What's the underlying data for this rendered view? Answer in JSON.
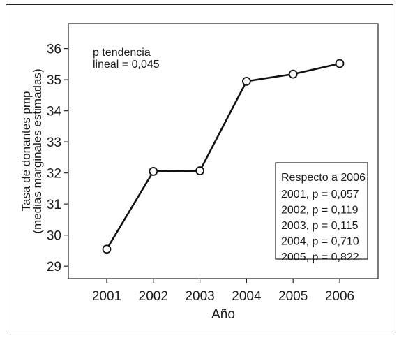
{
  "chart_data": {
    "type": "line",
    "x": [
      2001,
      2002,
      2003,
      2004,
      2005,
      2006
    ],
    "y": [
      29.55,
      32.05,
      32.07,
      34.95,
      35.18,
      35.52
    ],
    "xlabel": "Año",
    "ylabel_lines": [
      "Tasa de donantes pmp",
      "(medias marginales estimadas)"
    ],
    "yticks": [
      29,
      30,
      31,
      32,
      33,
      34,
      35,
      36
    ],
    "xticks": [
      "2001",
      "2002",
      "2003",
      "2004",
      "2005",
      "2006"
    ],
    "ylim": [
      28.6,
      36.8
    ],
    "grid": false,
    "legend": "none",
    "line_color": "#111111",
    "marker": "open-circle",
    "annotation": [
      "p tendencia",
      "lineal = 0,045"
    ],
    "pvalue_box": {
      "title": "Respecto a 2006",
      "lines": [
        "2001, p = 0,057",
        "2002, p = 0,119",
        "2003, p = 0,115",
        "2004, p = 0,710",
        "2005, p = 0,822"
      ]
    }
  }
}
